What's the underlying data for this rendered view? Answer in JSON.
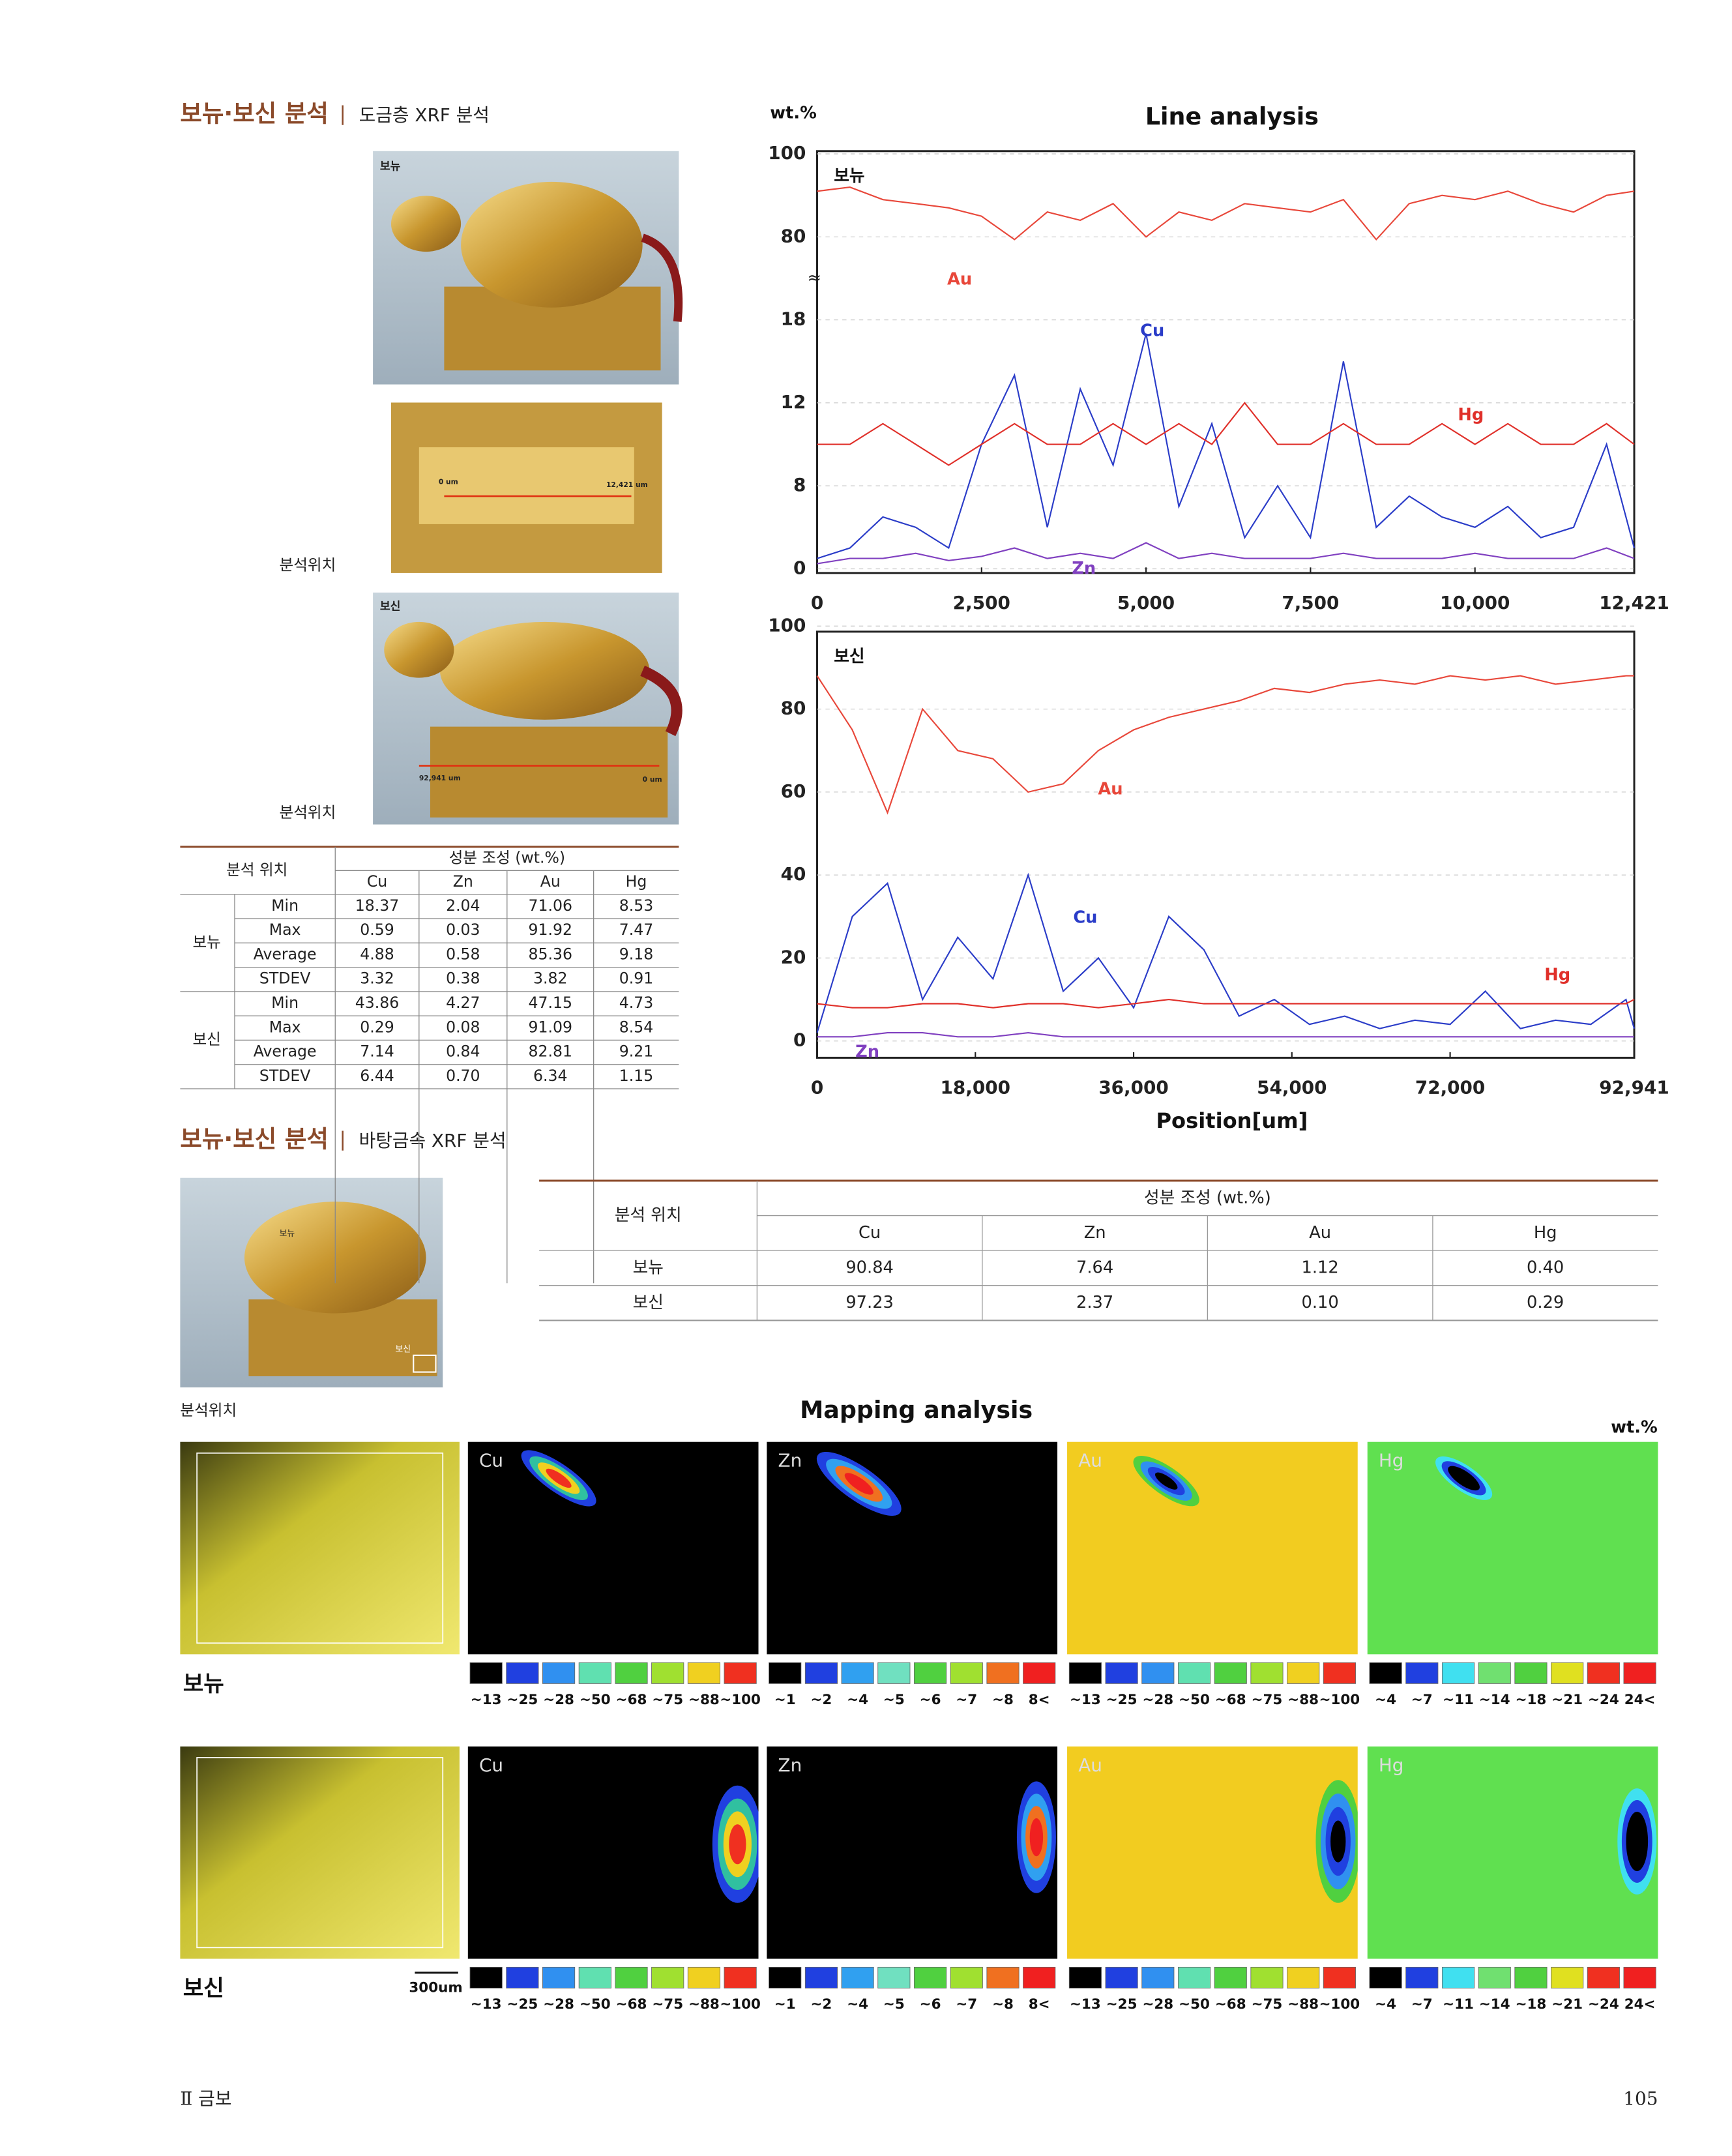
{
  "section1": {
    "title": "보뉴·보신 분석",
    "subtitle": "도금층 XRF 분석"
  },
  "photos1": {
    "bonyu_tag": "보뉴",
    "strip_start": "0 um",
    "strip_end": "12,421 um",
    "strip_caption": "분석위치",
    "bosin_tag": "보신",
    "bosin_start": "92,941 um",
    "bosin_end": "0 um",
    "bosin_caption": "분석위치"
  },
  "table1": {
    "position_header": "분석 위치",
    "composition_header": "성분 조성 (wt.%)",
    "columns": [
      "Cu",
      "Zn",
      "Au",
      "Hg"
    ],
    "groups": [
      {
        "name": "보뉴",
        "rows": [
          [
            "Min",
            "18.37",
            "2.04",
            "71.06",
            "8.53"
          ],
          [
            "Max",
            "0.59",
            "0.03",
            "91.92",
            "7.47"
          ],
          [
            "Average",
            "4.88",
            "0.58",
            "85.36",
            "9.18"
          ],
          [
            "STDEV",
            "3.32",
            "0.38",
            "3.82",
            "0.91"
          ]
        ]
      },
      {
        "name": "보신",
        "rows": [
          [
            "Min",
            "43.86",
            "4.27",
            "47.15",
            "4.73"
          ],
          [
            "Max",
            "0.29",
            "0.08",
            "91.09",
            "8.54"
          ],
          [
            "Average",
            "7.14",
            "0.84",
            "82.81",
            "9.21"
          ],
          [
            "STDEV",
            "6.44",
            "0.70",
            "6.34",
            "1.15"
          ]
        ]
      }
    ]
  },
  "chart_data": [
    {
      "type": "line",
      "title": "Line analysis",
      "y_label": "wt.%",
      "panel_label": "보뉴",
      "broken_axis": true,
      "grid": true,
      "xlim": [
        0,
        12421
      ],
      "xticks": [
        0,
        {
          "value": 2500,
          "label": "2,500"
        },
        {
          "value": 5000,
          "label": "5,000"
        },
        {
          "value": 7500,
          "label": "7,500"
        },
        {
          "value": 10000,
          "label": "10,000"
        },
        {
          "value": 12421,
          "label": "12,421"
        }
      ],
      "ylim": [
        0,
        100
      ],
      "yticks": [
        0,
        8,
        12,
        18,
        80,
        100
      ],
      "x": [
        0,
        500,
        1000,
        1500,
        2000,
        2500,
        3000,
        3500,
        4000,
        4500,
        5000,
        5500,
        6000,
        6500,
        7000,
        7500,
        8000,
        8500,
        9000,
        9500,
        10000,
        10500,
        11000,
        11500,
        12000,
        12421
      ],
      "series": [
        {
          "name": "Au",
          "color": "#e8473a",
          "values": [
            91,
            92,
            89,
            88,
            87,
            85,
            78,
            86,
            84,
            88,
            80,
            86,
            84,
            88,
            87,
            86,
            89,
            78,
            88,
            90,
            89,
            91,
            88,
            86,
            90,
            91
          ]
        },
        {
          "name": "Cu",
          "color": "#2a3cc8",
          "values": [
            1,
            2,
            5,
            4,
            2,
            10,
            14,
            4,
            13,
            9,
            17,
            6,
            11,
            3,
            8,
            3,
            15,
            4,
            7,
            5,
            4,
            6,
            3,
            4,
            10,
            2
          ]
        },
        {
          "name": "Hg",
          "color": "#e0302a",
          "values": [
            10,
            10,
            11,
            10,
            9,
            10,
            11,
            10,
            10,
            11,
            10,
            11,
            10,
            12,
            10,
            10,
            11,
            10,
            10,
            11,
            10,
            11,
            10,
            10,
            11,
            10
          ]
        },
        {
          "name": "Zn",
          "color": "#8040c0",
          "values": [
            0.5,
            1,
            1,
            1.5,
            0.8,
            1.2,
            2,
            1,
            1.5,
            1,
            2.5,
            1,
            1.5,
            1,
            1,
            1,
            1.5,
            1,
            1,
            1,
            1.5,
            1,
            1,
            1,
            2,
            1
          ]
        }
      ]
    },
    {
      "type": "line",
      "panel_label": "보신",
      "x_label": "Position[um]",
      "broken_axis": false,
      "grid": true,
      "xlim": [
        0,
        92941
      ],
      "xticks": [
        0,
        {
          "value": 18000,
          "label": "18,000"
        },
        {
          "value": 36000,
          "label": "36,000"
        },
        {
          "value": 54000,
          "label": "54,000"
        },
        {
          "value": 72000,
          "label": "72,000"
        },
        {
          "value": 92941,
          "label": "92,941"
        }
      ],
      "ylim": [
        0,
        100
      ],
      "yticks": [
        0,
        20,
        40,
        60,
        80,
        100
      ],
      "x": [
        0,
        4000,
        8000,
        12000,
        16000,
        20000,
        24000,
        28000,
        32000,
        36000,
        40000,
        44000,
        48000,
        52000,
        56000,
        60000,
        64000,
        68000,
        72000,
        76000,
        80000,
        84000,
        88000,
        92000,
        92941
      ],
      "series": [
        {
          "name": "Au",
          "color": "#e8473a",
          "values": [
            88,
            75,
            55,
            80,
            70,
            68,
            60,
            62,
            70,
            75,
            78,
            80,
            82,
            85,
            84,
            86,
            87,
            86,
            88,
            87,
            88,
            86,
            87,
            88,
            88
          ]
        },
        {
          "name": "Cu",
          "color": "#2a3cc8",
          "values": [
            2,
            30,
            38,
            10,
            25,
            15,
            40,
            12,
            20,
            8,
            30,
            22,
            6,
            10,
            4,
            6,
            3,
            5,
            4,
            12,
            3,
            5,
            4,
            10,
            3
          ]
        },
        {
          "name": "Hg",
          "color": "#e0302a",
          "values": [
            9,
            8,
            8,
            9,
            9,
            8,
            9,
            9,
            8,
            9,
            10,
            9,
            9,
            9,
            9,
            9,
            9,
            9,
            9,
            9,
            9,
            9,
            9,
            9,
            10
          ]
        },
        {
          "name": "Zn",
          "color": "#8040c0",
          "values": [
            1,
            1,
            2,
            2,
            1,
            1,
            2,
            1,
            1,
            1,
            1,
            1,
            1,
            1,
            1,
            1,
            1,
            1,
            1,
            1,
            1,
            1,
            1,
            1,
            1
          ]
        }
      ]
    }
  ],
  "section2": {
    "title": "보뉴·보신 분석",
    "subtitle": "바탕금속 XRF 분석"
  },
  "photo2": {
    "tag_top": "보뉴",
    "tag_bottom": "보신",
    "caption": "분석위치"
  },
  "table2": {
    "position_header": "분석 위치",
    "composition_header": "성분 조성 (wt.%)",
    "columns": [
      "Cu",
      "Zn",
      "Au",
      "Hg"
    ],
    "rows": [
      [
        "보뉴",
        "90.84",
        "7.64",
        "1.12",
        "0.40"
      ],
      [
        "보신",
        "97.23",
        "2.37",
        "0.10",
        "0.29"
      ]
    ]
  },
  "mapping": {
    "title": "Mapping analysis",
    "unit": "wt.%",
    "scalebar": "300um",
    "rows": [
      "보뉴",
      "보신"
    ],
    "panels": [
      "Cu",
      "Zn",
      "Au",
      "Hg"
    ],
    "scales": [
      {
        "labels": [
          "~13",
          "~25",
          "~28",
          "~50",
          "~68",
          "~75",
          "~88",
          "~100"
        ],
        "colors": [
          "#000000",
          "#2040e0",
          "#3090f0",
          "#60e0b0",
          "#50d040",
          "#a0e030",
          "#f0d020",
          "#f03020"
        ]
      },
      {
        "labels": [
          "~1",
          "~2",
          "~4",
          "~5",
          "~6",
          "~7",
          "~8",
          "8<"
        ],
        "colors": [
          "#000000",
          "#2040e0",
          "#30a0f0",
          "#70e0c0",
          "#50d040",
          "#a0e030",
          "#f07020",
          "#f02020"
        ]
      },
      {
        "labels": [
          "~13",
          "~25",
          "~28",
          "~50",
          "~68",
          "~75",
          "~88",
          "~100"
        ],
        "colors": [
          "#000000",
          "#2040e0",
          "#3090f0",
          "#60e0b0",
          "#50d040",
          "#a0e030",
          "#f0d020",
          "#f03020"
        ]
      },
      {
        "labels": [
          "~4",
          "~7",
          "~11",
          "~14",
          "~18",
          "~21",
          "~24",
          "24<"
        ],
        "colors": [
          "#000000",
          "#2040e0",
          "#40e0f0",
          "#70e070",
          "#50d040",
          "#e0e020",
          "#f03020",
          "#f02020"
        ]
      }
    ]
  },
  "footer": {
    "left": "Ⅱ 금보",
    "right": "105"
  }
}
